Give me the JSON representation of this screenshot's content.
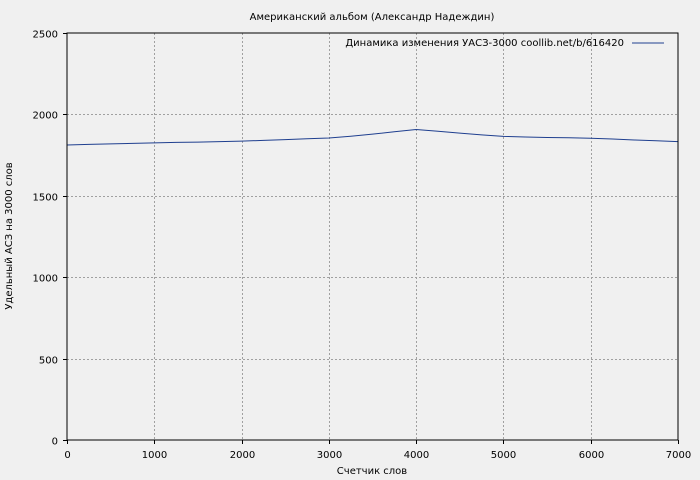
{
  "chart_data": {
    "type": "line",
    "title": "Американский альбом (Александр Надеждин)",
    "xlabel": "Счетчик слов",
    "ylabel": "Удельный АСЗ на 3000 слов",
    "xlim": [
      0,
      7000
    ],
    "ylim": [
      0,
      2500
    ],
    "xticks": [
      0,
      1000,
      2000,
      3000,
      4000,
      5000,
      6000,
      7000
    ],
    "yticks": [
      0,
      500,
      1000,
      1500,
      2000,
      2500
    ],
    "grid": true,
    "legend_position": "top-right",
    "series": [
      {
        "name": "Динамика изменения УАСЗ-3000 coollib.net/b/616420",
        "color": "#1f3f8f",
        "x": [
          0,
          250,
          500,
          750,
          1000,
          1250,
          1500,
          1750,
          2000,
          2250,
          2500,
          2750,
          3000,
          3250,
          3500,
          3750,
          4000,
          4250,
          4500,
          4750,
          5000,
          5250,
          5500,
          5750,
          6000,
          6250,
          6500,
          6750,
          7000
        ],
        "y": [
          1812,
          1816,
          1819,
          1822,
          1825,
          1828,
          1830,
          1833,
          1836,
          1840,
          1845,
          1850,
          1855,
          1866,
          1879,
          1893,
          1907,
          1896,
          1885,
          1874,
          1865,
          1861,
          1858,
          1856,
          1853,
          1849,
          1843,
          1838,
          1833
        ]
      }
    ]
  }
}
